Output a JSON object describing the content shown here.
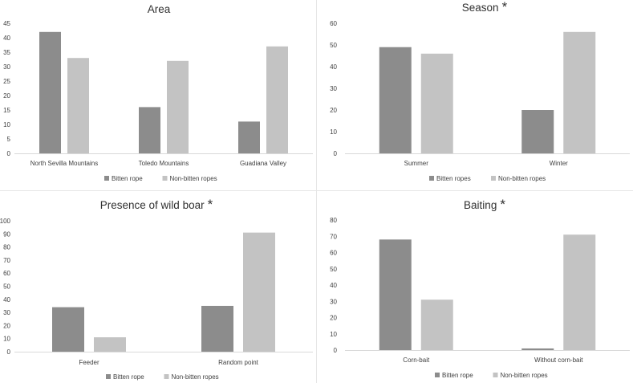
{
  "colors": {
    "bitten": "#8c8c8c",
    "non_bitten": "#c3c3c3",
    "axis": "#d9d9d9",
    "text": "#404040",
    "title": "#303030"
  },
  "chart_data": [
    {
      "type": "bar",
      "title": "Area",
      "significance": "",
      "categories": [
        "North Sevilla Mountains",
        "Toledo Mountains",
        "Guadiana Valley"
      ],
      "series": [
        {
          "name": "Bitten rope",
          "values": [
            42,
            16,
            11
          ]
        },
        {
          "name": "Non-bitten ropes",
          "values": [
            33,
            32,
            37
          ]
        }
      ],
      "ylim": [
        0,
        45
      ],
      "yticks": [
        "0",
        "5",
        "10",
        "15",
        "20",
        "25",
        "30",
        "35",
        "40",
        "45"
      ],
      "xlabel": "",
      "ylabel": "",
      "legend": "bottom"
    },
    {
      "type": "bar",
      "title": "Season",
      "significance": "*",
      "categories": [
        "Summer",
        "Winter"
      ],
      "series": [
        {
          "name": "Bitten ropes",
          "values": [
            49,
            20
          ]
        },
        {
          "name": "Non-bitten ropes",
          "values": [
            46,
            56
          ]
        }
      ],
      "ylim": [
        0,
        60
      ],
      "yticks": [
        "0",
        "10",
        "20",
        "30",
        "40",
        "50",
        "60"
      ],
      "xlabel": "",
      "ylabel": "",
      "legend": "bottom"
    },
    {
      "type": "bar",
      "title": "Presence of wild boar",
      "significance": "*",
      "categories": [
        "Feeder",
        "Random point"
      ],
      "series": [
        {
          "name": "Bitten rope",
          "values": [
            34,
            35
          ]
        },
        {
          "name": "Non-bitten ropes",
          "values": [
            11,
            91
          ]
        }
      ],
      "ylim": [
        0,
        100
      ],
      "yticks": [
        "0",
        "10",
        "20",
        "30",
        "40",
        "50",
        "60",
        "70",
        "80",
        "90",
        "100"
      ],
      "xlabel": "",
      "ylabel": "",
      "legend": "bottom"
    },
    {
      "type": "bar",
      "title": "Baiting",
      "significance": "*",
      "categories": [
        "Corn-bait",
        "Without corn-bait"
      ],
      "series": [
        {
          "name": "Bitten rope",
          "values": [
            68,
            1
          ]
        },
        {
          "name": "Non-bitten ropes",
          "values": [
            31,
            71
          ]
        }
      ],
      "ylim": [
        0,
        80
      ],
      "yticks": [
        "0",
        "10",
        "20",
        "30",
        "40",
        "50",
        "60",
        "70",
        "80"
      ],
      "xlabel": "",
      "ylabel": "",
      "legend": "bottom"
    }
  ]
}
